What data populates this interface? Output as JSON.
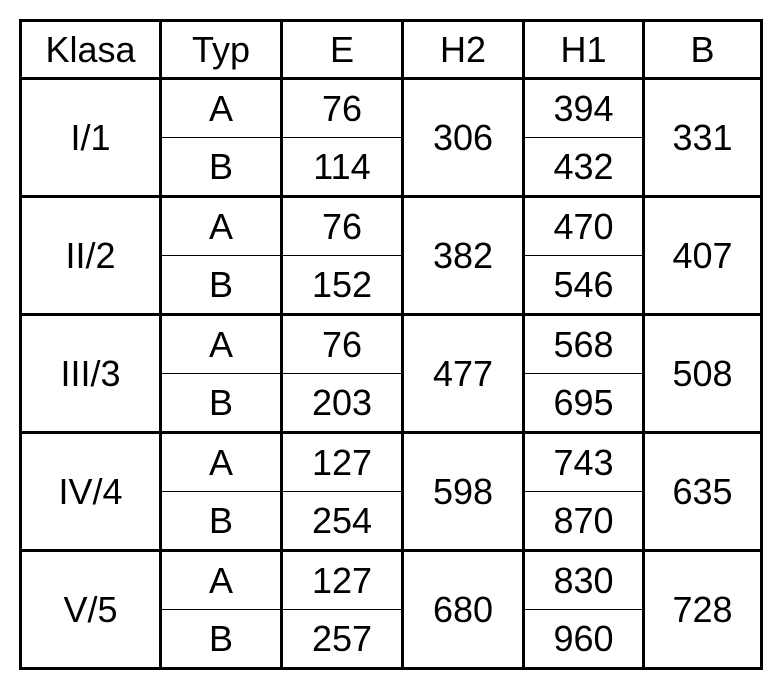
{
  "table": {
    "header": [
      "Klasa",
      "Typ",
      "E",
      "H2",
      "H1",
      "B"
    ],
    "groups": [
      {
        "klasa": "I/1",
        "h2": 306,
        "b": 331,
        "rows": [
          {
            "typ": "A",
            "e": 76,
            "h1": 394
          },
          {
            "typ": "B",
            "e": 114,
            "h1": 432
          }
        ]
      },
      {
        "klasa": "II/2",
        "h2": 382,
        "b": 407,
        "rows": [
          {
            "typ": "A",
            "e": 76,
            "h1": 470
          },
          {
            "typ": "B",
            "e": 152,
            "h1": 546
          }
        ]
      },
      {
        "klasa": "III/3",
        "h2": 477,
        "b": 508,
        "rows": [
          {
            "typ": "A",
            "e": 76,
            "h1": 568
          },
          {
            "typ": "B",
            "e": 203,
            "h1": 695
          }
        ]
      },
      {
        "klasa": "IV/4",
        "h2": 598,
        "b": 635,
        "rows": [
          {
            "typ": "A",
            "e": 127,
            "h1": 743
          },
          {
            "typ": "B",
            "e": 254,
            "h1": 870
          }
        ]
      },
      {
        "klasa": "V/5",
        "h2": 680,
        "b": 728,
        "rows": [
          {
            "typ": "A",
            "e": 127,
            "h1": 830
          },
          {
            "typ": "B",
            "e": 257,
            "h1": 960
          }
        ]
      }
    ]
  }
}
